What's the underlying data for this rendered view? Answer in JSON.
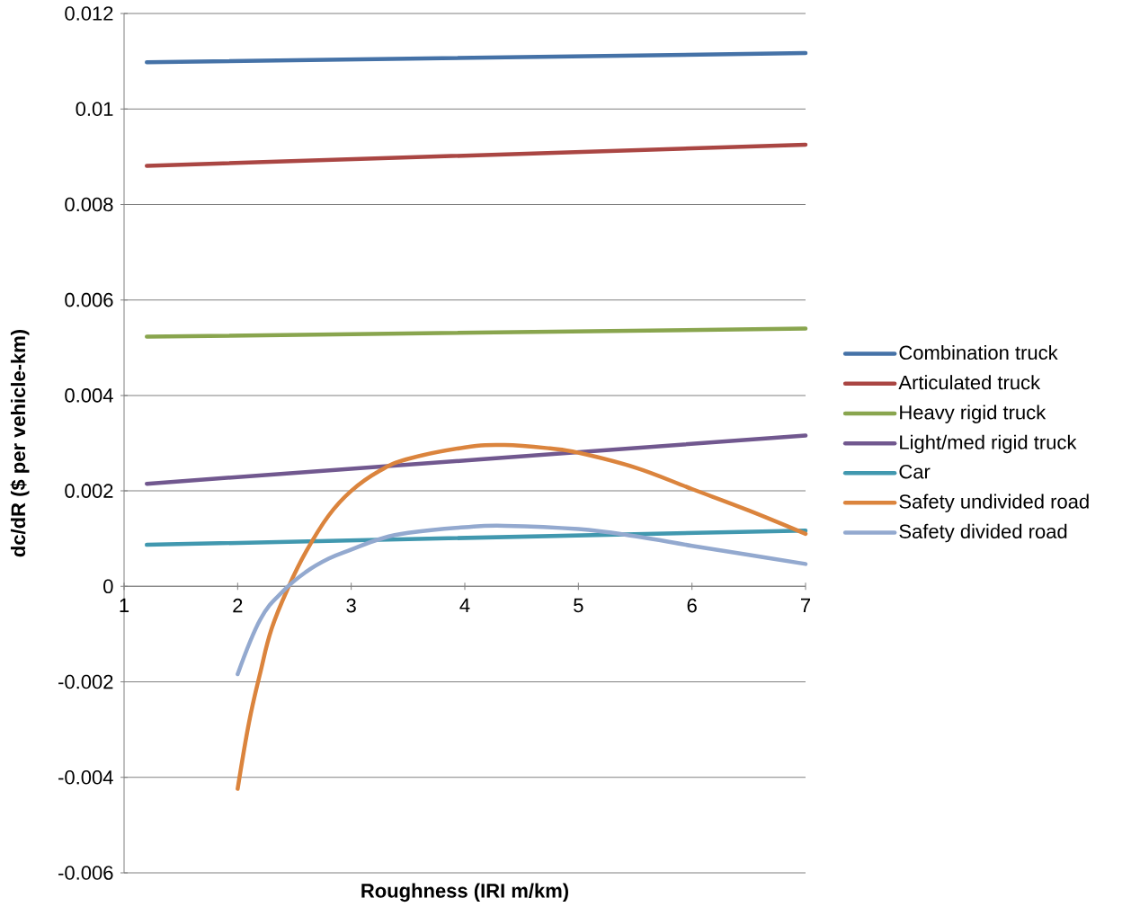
{
  "chart_data": {
    "type": "line",
    "xlabel": "Roughness (IRI m/km)",
    "ylabel": "dc/dR ($ per vehicle-km)",
    "xlim": [
      1,
      7
    ],
    "xticks": [
      1,
      2,
      3,
      4,
      5,
      6,
      7
    ],
    "ylim": [
      -0.006,
      0.012
    ],
    "yticks": [
      -0.006,
      -0.004,
      -0.002,
      0,
      0.002,
      0.004,
      0.006,
      0.008,
      0.01,
      0.012
    ],
    "grid": "y",
    "legend": "right",
    "marker": "none",
    "line_style": "solid",
    "series": [
      {
        "name": "Combination truck",
        "color": "#4572a7",
        "x": [
          1.2,
          7
        ],
        "values": [
          0.01098,
          0.01117
        ]
      },
      {
        "name": "Articulated truck",
        "color": "#aa4643",
        "x": [
          1.2,
          7
        ],
        "values": [
          0.00881,
          0.00925
        ]
      },
      {
        "name": "Heavy rigid truck",
        "color": "#89a54e",
        "x": [
          1.2,
          7
        ],
        "values": [
          0.00523,
          0.0054
        ]
      },
      {
        "name": "Light/med rigid truck",
        "color": "#71588f",
        "x": [
          1.2,
          7
        ],
        "values": [
          0.00215,
          0.00316
        ]
      },
      {
        "name": "Car",
        "color": "#4198af",
        "x": [
          1.2,
          7
        ],
        "values": [
          0.00087,
          0.00117
        ]
      },
      {
        "name": "Safety undivided road",
        "color": "#db843d",
        "x": [
          2,
          2.1,
          2.2,
          2.3,
          2.45,
          2.6,
          2.8,
          3,
          3.25,
          3.5,
          4,
          4.35,
          4.75,
          5,
          5.5,
          6,
          6.5,
          7
        ],
        "values": [
          -0.00424,
          -0.00285,
          -0.0018,
          -0.00088,
          0,
          0.00072,
          0.00148,
          0.002,
          0.00242,
          0.00267,
          0.00291,
          0.00296,
          0.00289,
          0.0028,
          0.00249,
          0.00204,
          0.00159,
          0.0011
        ]
      },
      {
        "name": "Safety divided road",
        "color": "#93a9cf",
        "x": [
          2,
          2.2,
          2.4,
          2.6,
          2.8,
          3,
          3.25,
          3.5,
          4,
          4.35,
          5,
          5.5,
          6,
          6.5,
          7
        ],
        "values": [
          -0.00184,
          -0.00069,
          -0.0001,
          0.0003,
          0.00058,
          0.00077,
          0.00099,
          0.00112,
          0.00124,
          0.00127,
          0.0012,
          0.00105,
          0.00085,
          0.00066,
          0.00047
        ]
      }
    ]
  }
}
